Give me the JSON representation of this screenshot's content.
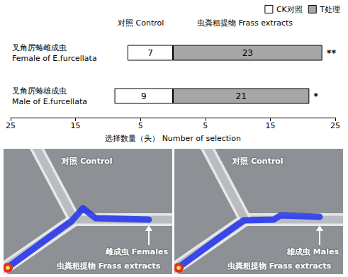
{
  "chart_data": {
    "type": "bar",
    "orientation": "horizontal",
    "categories": [
      "叉角厉蝽雌成虫\nFemale of E.furcellata",
      "叉角厉蝽雄成虫\nMale of E.furcellata"
    ],
    "series": [
      {
        "name": "CK对照",
        "color": "#ffffff",
        "values": [
          7,
          9
        ],
        "label": "对照 Control"
      },
      {
        "name": "T处理",
        "color": "#a6a6a6",
        "values": [
          23,
          21
        ],
        "label": "虫粪粗提物 Frass extracts"
      }
    ],
    "significance": [
      "**",
      "*"
    ],
    "xlabel": "选择数量（头） Number of selection",
    "xlim": [
      0,
      25
    ],
    "xticks": [
      5,
      15,
      25
    ],
    "legend": "top-right",
    "data_labels": true,
    "grid": false
  },
  "photos": [
    {
      "control": "对照 Control",
      "insects": "雌成虫 Females",
      "extracts": "虫粪粗提物 Frass extracts"
    },
    {
      "control": "对照 Control",
      "insects": "雄成虫 Males",
      "extracts": "虫粪粗提物 Frass extracts"
    }
  ]
}
